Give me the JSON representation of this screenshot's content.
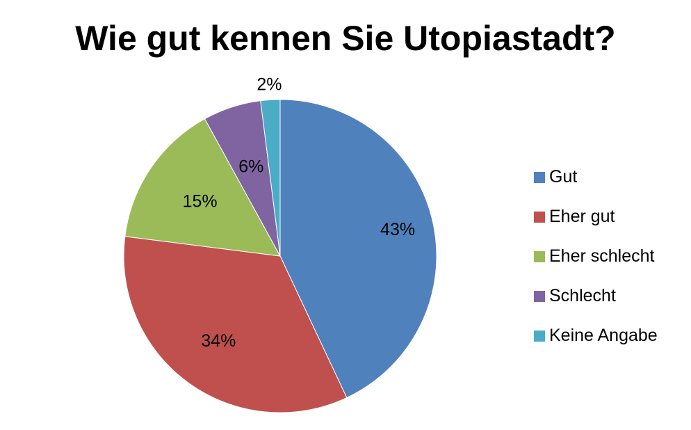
{
  "chart_data": {
    "type": "pie",
    "title": "Wie gut kennen Sie Utopiastadt?",
    "legend_position": "right",
    "slices": [
      {
        "label": "Gut",
        "value": 43,
        "value_label": "43%",
        "color": "#4F81BD"
      },
      {
        "label": "Eher gut",
        "value": 34,
        "value_label": "34%",
        "color": "#C0504D"
      },
      {
        "label": "Eher schlecht",
        "value": 15,
        "value_label": "15%",
        "color": "#9BBB59"
      },
      {
        "label": "Schlecht",
        "value": 6,
        "value_label": "6%",
        "color": "#8064A2"
      },
      {
        "label": "Keine Angabe",
        "value": 2,
        "value_label": "2%",
        "color": "#4BACC6"
      }
    ]
  }
}
